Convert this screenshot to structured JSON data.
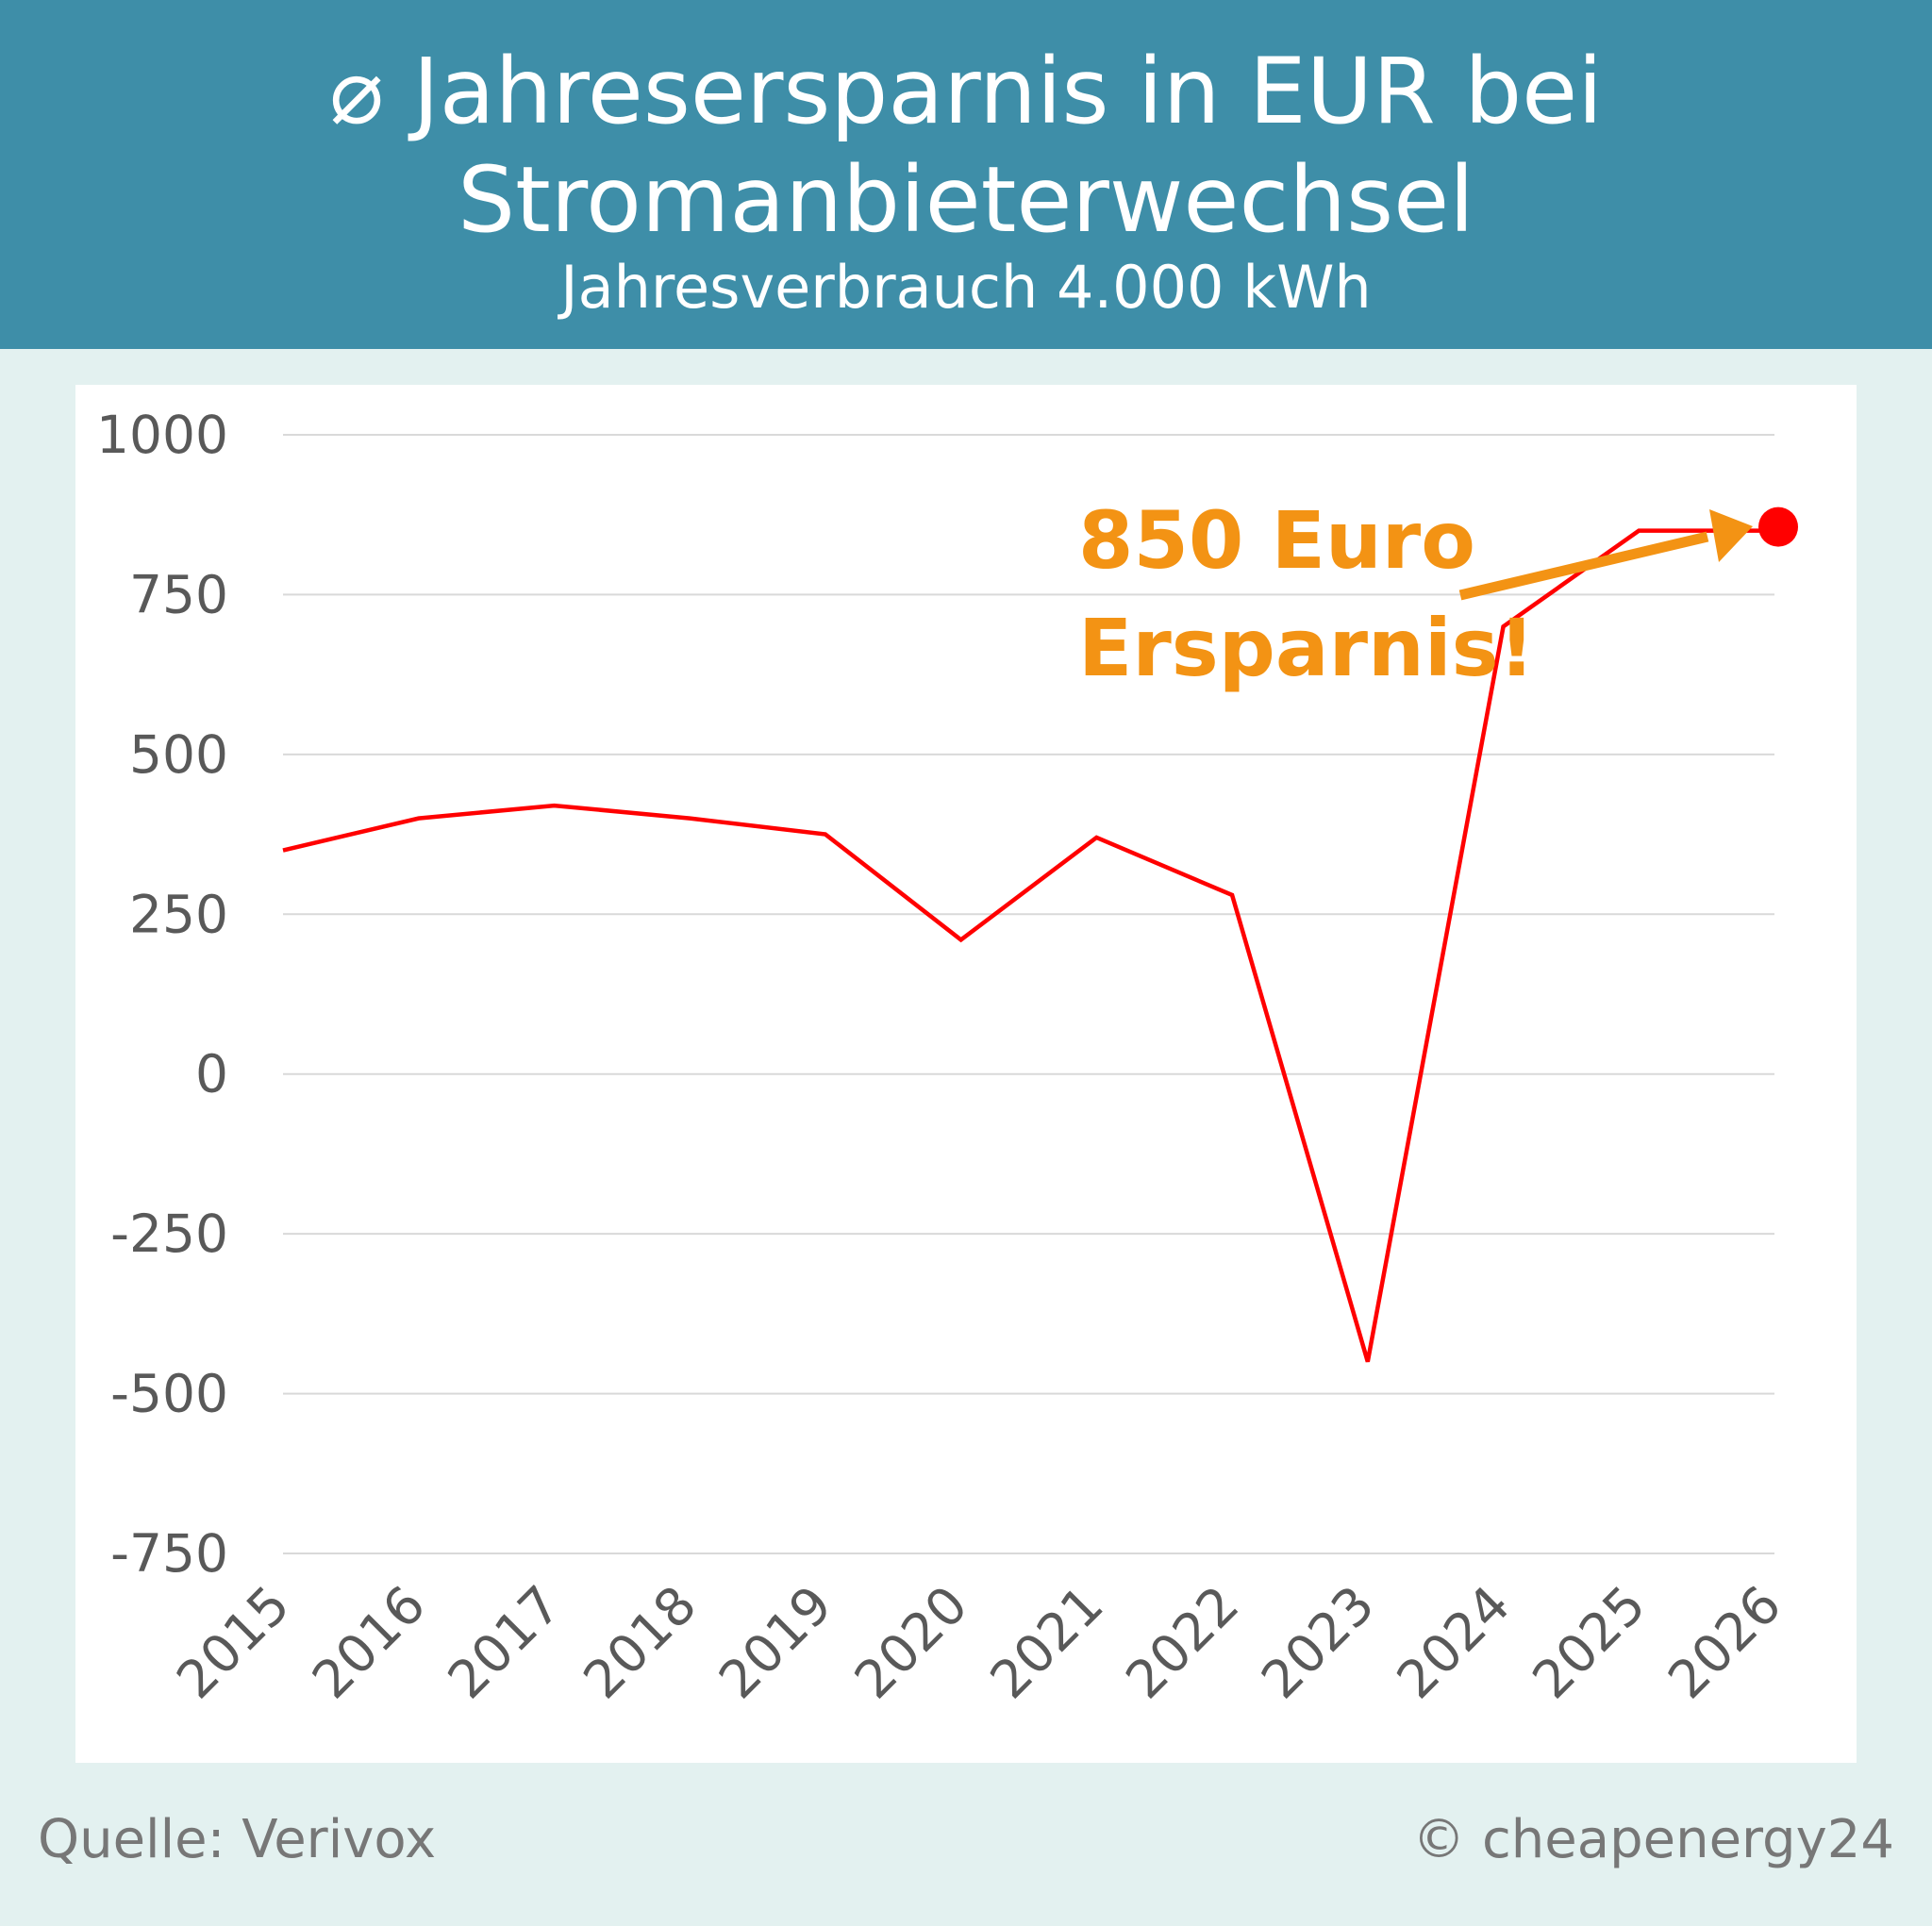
{
  "header": {
    "title": "⌀ Jahresersparnis in EUR bei Stromanbieterwechsel",
    "title_line1": "⌀ Jahresersparnis in EUR bei",
    "title_line2": "Stromanbieterwechsel",
    "subtitle": "Jahresverbrauch 4.000 kWh"
  },
  "chart_data": {
    "type": "line",
    "title": "⌀ Jahresersparnis in EUR bei Stromanbieterwechsel",
    "subtitle": "Jahresverbrauch 4.000 kWh",
    "categories": [
      "2015",
      "2016",
      "2017",
      "2018",
      "2019",
      "2020",
      "2021",
      "2022",
      "2023",
      "2024",
      "2025",
      "2026"
    ],
    "values": [
      350,
      400,
      420,
      400,
      375,
      210,
      370,
      280,
      -450,
      700,
      850,
      850
    ],
    "ylim": [
      -750,
      1000
    ],
    "yticks": [
      1000,
      750,
      500,
      250,
      0,
      -250,
      -500,
      -750
    ],
    "grid": true,
    "line_color": "#ff0000",
    "highlight_point": {
      "x": "2026",
      "y": 850
    },
    "annotation": {
      "line1": "850 Euro",
      "line2": "Ersparnis!",
      "color": "#f39314"
    }
  },
  "footer": {
    "source": "Quelle: Verivox",
    "copyright": "© cheapenergy24"
  },
  "colors": {
    "header": "#3e8ea8",
    "background": "#e3f1f0",
    "axis_text": "#595959"
  }
}
